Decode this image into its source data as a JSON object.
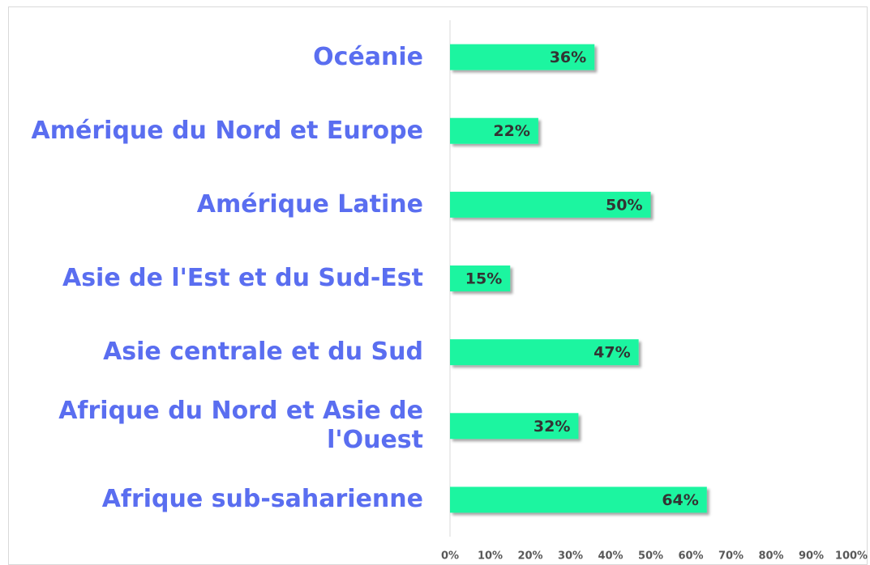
{
  "chart_data": {
    "type": "bar",
    "orientation": "horizontal",
    "categories": [
      "Océanie",
      "Amérique du Nord et Europe",
      "Amérique Latine",
      "Asie de l'Est et du Sud-Est",
      "Asie centrale et du Sud",
      "Afrique du Nord et Asie de l'Ouest",
      "Afrique sub-saharienne"
    ],
    "values": [
      36,
      22,
      50,
      15,
      47,
      32,
      64
    ],
    "value_labels": [
      "36%",
      "22%",
      "50%",
      "15%",
      "47%",
      "32%",
      "64%"
    ],
    "color": "#1ef5a0",
    "xlim": [
      0,
      100
    ],
    "xticks": [
      {
        "value": 0,
        "label": "0%"
      },
      {
        "value": 10,
        "label": "10%"
      },
      {
        "value": 20,
        "label": "20%"
      },
      {
        "value": 30,
        "label": "30%"
      },
      {
        "value": 40,
        "label": "40%"
      },
      {
        "value": 50,
        "label": "50%"
      },
      {
        "value": 60,
        "label": "60%"
      },
      {
        "value": 70,
        "label": "70%"
      },
      {
        "value": 80,
        "label": "80%"
      },
      {
        "value": 90,
        "label": "90%"
      },
      {
        "value": 100,
        "label": "100%"
      }
    ],
    "grid": false
  }
}
